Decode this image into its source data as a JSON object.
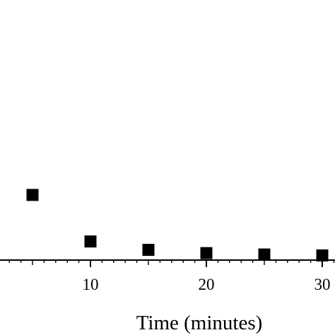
{
  "chart_data": {
    "type": "scatter",
    "xlabel": "Time (minutes)",
    "xlim": [
      2.2,
      31
    ],
    "x_ticks": [
      10,
      20,
      30
    ],
    "x_minor_step": 1,
    "ylim": [
      0,
      6.5
    ],
    "series": [
      {
        "x": [
          5,
          10,
          15,
          20,
          25,
          30
        ],
        "y": [
          1.4,
          0.4,
          0.22,
          0.15,
          0.12,
          0.1
        ]
      }
    ],
    "marker": "square",
    "colors": {
      "marker": "#000000",
      "axis": "#000000",
      "background": "#ffffff"
    }
  }
}
